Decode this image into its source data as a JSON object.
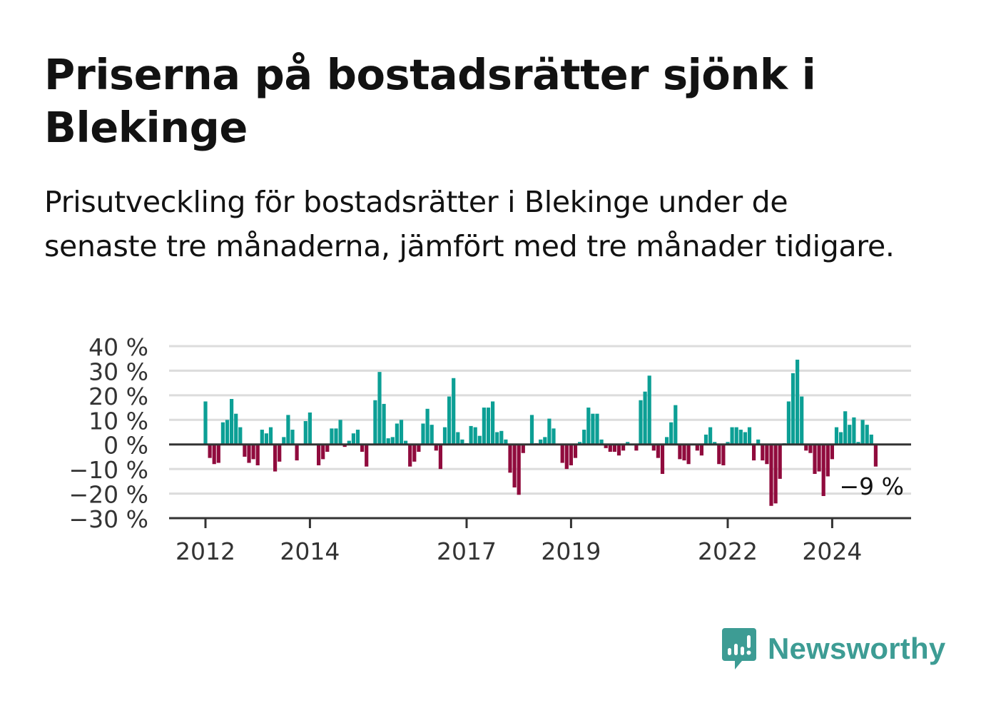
{
  "title": "Priserna på bostadsrätter sjönk i Blekinge",
  "subtitle": "Prisutveckling för bostadsrätter i Blekinge under de senaste tre månaderna, jämfört med tre månader tidigare.",
  "brand": {
    "name": "Newsworthy",
    "icon": "newsworthy-logo-icon",
    "color": "#3d9c94"
  },
  "chart_data": {
    "type": "bar",
    "x_start": "2012-01",
    "frequency": "monthly",
    "unit": "%",
    "ylim": [
      -30,
      40
    ],
    "yticks": [
      40,
      30,
      20,
      10,
      0,
      -10,
      -20,
      -30
    ],
    "ytick_labels": [
      "40 %",
      "30 %",
      "20 %",
      "10 %",
      "0 %",
      "−10 %",
      "−20 %",
      "−30 %"
    ],
    "xticks": [
      {
        "label": "2012",
        "index": 0
      },
      {
        "label": "2014",
        "index": 24
      },
      {
        "label": "2017",
        "index": 60
      },
      {
        "label": "2019",
        "index": 84
      },
      {
        "label": "2022",
        "index": 120
      },
      {
        "label": "2024",
        "index": 144
      }
    ],
    "grid": true,
    "colors": {
      "positive": "#0c9f95",
      "negative": "#900b3d",
      "grid": "#dcdcdc",
      "axis": "#333333"
    },
    "annotation": {
      "text": "−9 %",
      "index": 154,
      "value": -9
    },
    "values": [
      17.5,
      -5.5,
      -8,
      -7.5,
      9,
      10,
      18.5,
      12.5,
      7,
      -5,
      -7.5,
      -6,
      -8.5,
      6,
      4.5,
      7,
      -11,
      -7,
      3,
      12,
      6,
      -6.5,
      0,
      9.5,
      13,
      0,
      -8.5,
      -6,
      -3,
      6.5,
      6.5,
      10,
      -1,
      1.5,
      4.5,
      6,
      -3,
      -9,
      0,
      18,
      29.5,
      16.5,
      2.5,
      3,
      8.5,
      10,
      1.5,
      -9,
      -7,
      -3,
      8.5,
      14.5,
      8,
      -2.5,
      -10,
      7,
      19.5,
      27,
      5,
      2,
      0.5,
      7.5,
      7,
      3.5,
      15,
      15,
      17.5,
      5,
      5.5,
      2,
      -11.5,
      -17.5,
      -20.5,
      -3.5,
      0,
      12,
      0.5,
      2,
      3,
      10.5,
      6.5,
      0,
      -7.5,
      -10,
      -8.5,
      -5.5,
      1,
      6,
      15,
      12.5,
      12.5,
      2,
      -1.5,
      -3,
      -3,
      -4.5,
      -2.5,
      1,
      0,
      -2.5,
      18,
      21.5,
      28,
      -2.5,
      -5.5,
      -12,
      3,
      9,
      16,
      -6,
      -6.5,
      -8,
      0,
      -2.5,
      -4.5,
      4,
      7,
      1,
      -8,
      -8.5,
      1,
      7,
      7,
      6,
      5,
      7,
      -6.5,
      2,
      -6.5,
      -8,
      -25,
      -24,
      -14,
      0.5,
      17.5,
      29,
      34.5,
      19.5,
      -2.5,
      -3.5,
      -12,
      -11,
      -21,
      -13,
      -6,
      7,
      5,
      13.5,
      8,
      11,
      1,
      10,
      8,
      4,
      -9
    ]
  }
}
